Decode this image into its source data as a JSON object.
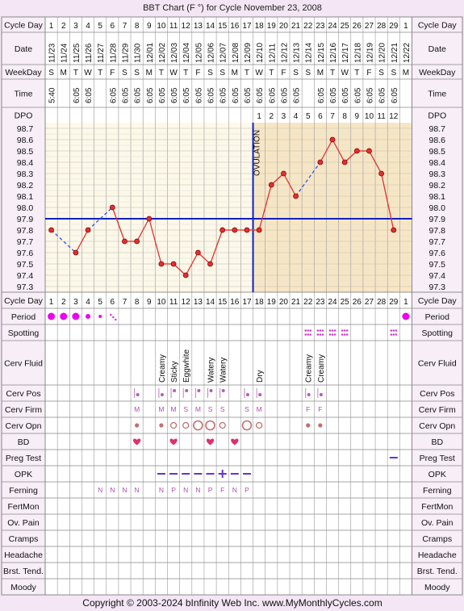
{
  "title": "BBT Chart (F °) for Cycle November 23, 2008",
  "copyright": "Copyright © 2003-2024 bInfinity Web Inc.     www.MyMonthlyCycles.com",
  "row_labels": {
    "cycle_day": "Cycle Day",
    "date": "Date",
    "weekday": "WeekDay",
    "time": "Time",
    "dpo": "DPO",
    "period": "Period",
    "spotting": "Spotting",
    "cerv_fluid": "Cerv Fluid",
    "cerv_pos": "Cerv Pos",
    "cerv_firm": "Cerv Firm",
    "cerv_opn": "Cerv Opn",
    "bd": "BD",
    "preg_test": "Preg Test",
    "opk": "OPK",
    "ferning": "Ferning",
    "fertmon": "FertMon",
    "ov_pain": "Ov. Pain",
    "cramps": "Cramps",
    "headache": "Headache",
    "brst_tend": "Brst. Tend.",
    "moody": "Moody"
  },
  "ovulation_label": "OVULATION",
  "colors": {
    "temp_line": "#e03030",
    "point_fill": "#e03030",
    "coverline": "#1020c0",
    "luteal": "#f7e6c4",
    "follicular": "#fdf8e8",
    "grid": "#cccccc",
    "dots": "#cc44cc"
  },
  "chart_data": {
    "type": "line",
    "title": "BBT Chart (F °) for Cycle November 23, 2008",
    "cycle_days": [
      "1",
      "2",
      "3",
      "4",
      "5",
      "6",
      "7",
      "8",
      "9",
      "10",
      "11",
      "12",
      "13",
      "14",
      "15",
      "16",
      "17",
      "18",
      "19",
      "20",
      "21",
      "22",
      "23",
      "24",
      "25",
      "26",
      "27",
      "28",
      "29",
      "1"
    ],
    "dates": [
      "11/23",
      "11/24",
      "11/25",
      "11/26",
      "11/27",
      "11/28",
      "11/29",
      "11/30",
      "12/01",
      "12/02",
      "12/03",
      "12/04",
      "12/05",
      "12/06",
      "12/07",
      "12/08",
      "12/09",
      "12/10",
      "12/11",
      "12/12",
      "12/13",
      "12/14",
      "12/15",
      "12/16",
      "12/17",
      "12/18",
      "12/19",
      "12/20",
      "12/21",
      "12/22"
    ],
    "weekdays": [
      "S",
      "M",
      "T",
      "W",
      "T",
      "F",
      "S",
      "S",
      "M",
      "T",
      "W",
      "T",
      "F",
      "S",
      "S",
      "M",
      "T",
      "W",
      "T",
      "F",
      "S",
      "S",
      "M",
      "T",
      "W",
      "T",
      "F",
      "S",
      "S",
      "M"
    ],
    "times": [
      "5:40",
      "",
      "6:05",
      "6:05",
      "",
      "6:05",
      "6:05",
      "6:05",
      "6:05",
      "6:05",
      "6:05",
      "6:05",
      "6:05",
      "6:05",
      "6:05",
      "6:05",
      "6:05",
      "6:05",
      "6:05",
      "6:05",
      "6:05",
      "",
      "6:05",
      "6:05",
      "6:05",
      "6:05",
      "6:05",
      "6:05",
      "6:05",
      ""
    ],
    "dpo": [
      "",
      "",
      "",
      "",
      "",
      "",
      "",
      "",
      "",
      "",
      "",
      "",
      "",
      "",
      "",
      "",
      "",
      "1",
      "2",
      "3",
      "4",
      "5",
      "6",
      "7",
      "8",
      "9",
      "10",
      "11",
      "12",
      ""
    ],
    "temperatures": [
      97.8,
      null,
      97.6,
      97.8,
      null,
      98.0,
      97.7,
      97.7,
      97.9,
      97.5,
      97.5,
      97.4,
      97.6,
      97.5,
      97.8,
      97.8,
      97.8,
      97.8,
      98.2,
      98.3,
      98.1,
      null,
      98.4,
      98.6,
      98.4,
      98.5,
      98.5,
      98.3,
      97.8,
      null
    ],
    "y_ticks": [
      "98.7",
      "98.6",
      "98.5",
      "98.4",
      "98.3",
      "98.2",
      "98.1",
      "98.0",
      "97.9",
      "97.8",
      "97.7",
      "97.6",
      "97.5",
      "97.4",
      "97.3"
    ],
    "ylim": [
      97.3,
      98.7
    ],
    "coverline": 97.9,
    "ovulation_after_day": 17,
    "grid": true,
    "period": [
      "big",
      "big",
      "big",
      "medium",
      "small",
      "trace",
      "",
      "",
      "",
      "",
      "",
      "",
      "",
      "",
      "",
      "",
      "",
      "",
      "",
      "",
      "",
      "",
      "",
      "",
      "",
      "",
      "",
      "",
      "",
      "big"
    ],
    "spotting_days": [
      22,
      23,
      24,
      25,
      29
    ],
    "cerv_fluid": {
      "10": "Creamy",
      "11": "Sticky",
      "12": "Eggwhite",
      "14": "Watery",
      "15": "Watery",
      "18": "Dry",
      "22": "Creamy",
      "23": "Creamy"
    },
    "cerv_pos": {
      "8": "low",
      "10": "low",
      "11": "mid",
      "12": "mid",
      "13": "mid",
      "14": "mid",
      "15": "mid",
      "17": "low",
      "18": "low",
      "22": "low",
      "23": "low"
    },
    "cerv_firm": {
      "8": "M",
      "10": "M",
      "11": "M",
      "12": "S",
      "13": "M",
      "14": "S",
      "15": "S",
      "17": "S",
      "18": "M",
      "22": "F",
      "23": "F"
    },
    "cerv_opn": {
      "8": "closed",
      "10": "closed",
      "11": "medium",
      "12": "medium",
      "13": "open",
      "14": "open",
      "15": "medium",
      "17": "open",
      "18": "medium",
      "22": "closed",
      "23": "closed"
    },
    "bd_days": [
      8,
      11,
      14,
      16
    ],
    "preg_test": {
      "29": "negative"
    },
    "opk": {
      "10": "neg",
      "11": "neg",
      "12": "neg",
      "13": "neg",
      "14": "neg",
      "15": "pos",
      "16": "neg",
      "17": "neg"
    },
    "ferning": {
      "5": "N",
      "6": "N",
      "7": "N",
      "8": "N",
      "10": "N",
      "11": "P",
      "12": "N",
      "13": "N",
      "14": "P",
      "15": "F",
      "16": "N",
      "17": "P"
    }
  }
}
